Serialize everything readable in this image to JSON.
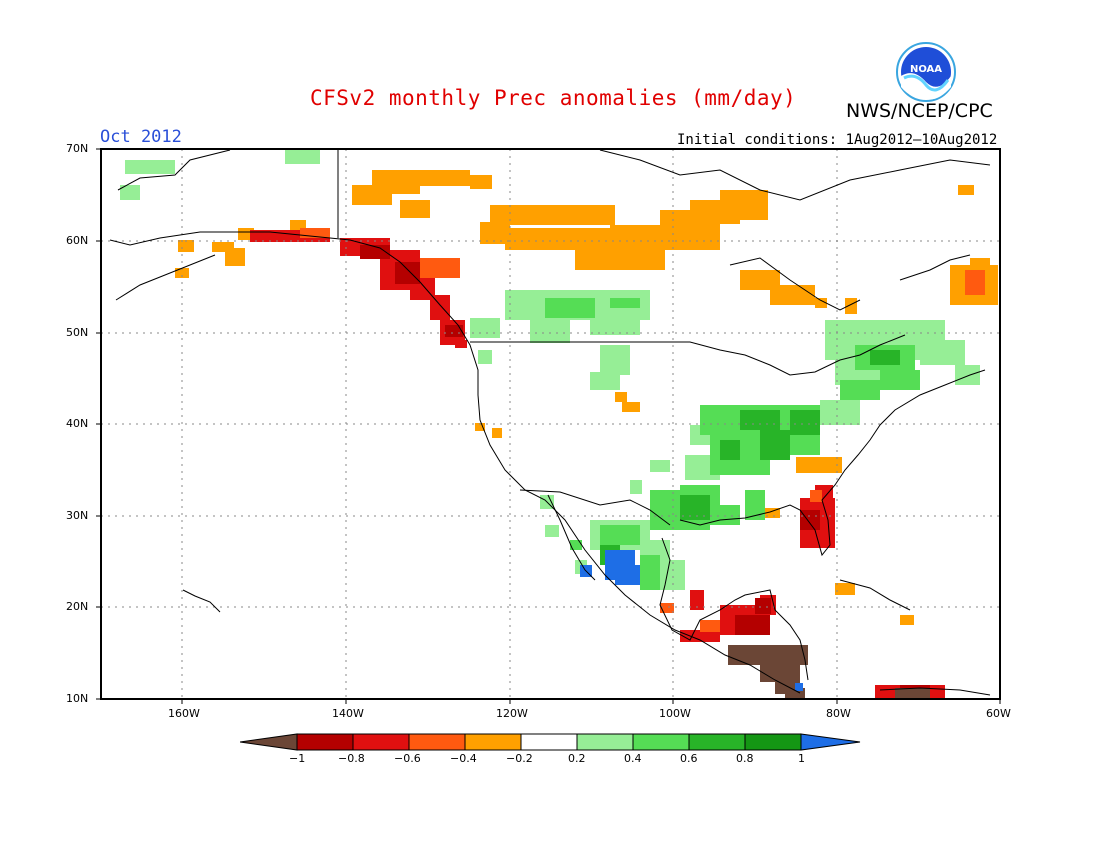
{
  "header": {
    "title": "CFSv2 monthly Prec anomalies (mm/day)",
    "agency": "NWS/NCEP/CPC",
    "month": "Oct 2012",
    "initial_conditions": "Initial conditions: 1Aug2012–10Aug2012",
    "logo_text": "NOAA"
  },
  "map": {
    "lat_labels": [
      "70N",
      "60N",
      "50N",
      "40N",
      "30N",
      "20N",
      "10N"
    ],
    "lon_labels": [
      "160W",
      "140W",
      "120W",
      "100W",
      "80W",
      "60W"
    ],
    "lon_range": [
      -170,
      -60
    ],
    "lat_range": [
      10,
      70
    ],
    "projection": "lat-lon",
    "grid": "dotted"
  },
  "colorbar": {
    "labels": [
      "−1",
      "−0.8",
      "−0.6",
      "−0.4",
      "−0.2",
      "0.2",
      "0.4",
      "0.6",
      "0.8",
      "1"
    ],
    "colors": {
      "below_-1": "#6b4636",
      "-1_-0.8": "#b40000",
      "-0.8_-0.6": "#e01010",
      "-0.6_-0.4": "#ff5a10",
      "-0.4_-0.2": "#ffa000",
      "-0.2_0.2": "#ffffff",
      "0.2_0.4": "#96ee96",
      "0.4_0.6": "#55dd55",
      "0.6_0.8": "#28b428",
      "0.8_1": "#149614",
      "above_1": "#1e6ee6"
    }
  }
}
